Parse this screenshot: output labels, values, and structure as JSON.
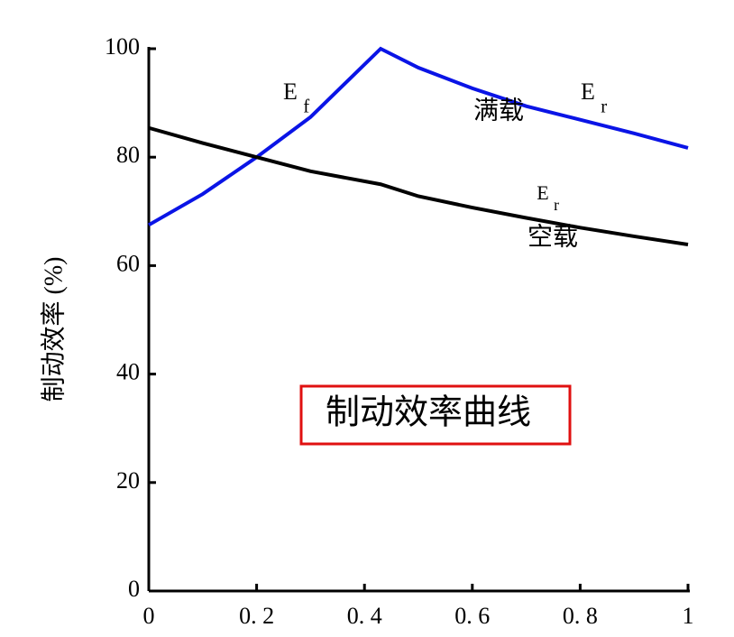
{
  "chart_data": {
    "type": "line",
    "ylabel": "制动效率 (%)",
    "box_text": "制动效率曲线",
    "x": [
      0,
      0.1,
      0.2,
      0.3,
      0.43,
      0.5,
      0.6,
      0.7,
      0.8,
      0.9,
      1
    ],
    "series": [
      {
        "name": "满载",
        "color": "#0a14e6",
        "values": [
          67.5,
          73.2,
          80,
          87.4,
          100,
          96.5,
          92.7,
          89.4,
          86.9,
          84.4,
          81.7
        ]
      },
      {
        "name": "空载",
        "color": "#000000",
        "values": [
          85.4,
          82.6,
          80,
          77.4,
          75,
          72.8,
          70.7,
          68.8,
          67,
          65.4,
          63.9
        ]
      }
    ],
    "annotations": [
      {
        "text": "E",
        "sub": "f"
      },
      {
        "text": "E",
        "sub": "r"
      },
      {
        "text": "E",
        "sub": "r"
      }
    ],
    "xlim": [
      0,
      1
    ],
    "ylim": [
      0,
      100
    ],
    "xticks": [
      0,
      {
        "value": 0.2,
        "label": "0. 2"
      },
      {
        "value": 0.4,
        "label": "0. 4"
      },
      {
        "value": 0.6,
        "label": "0. 6"
      },
      {
        "value": 0.8,
        "label": "0. 8"
      },
      1
    ],
    "yticks": [
      0,
      20,
      40,
      60,
      80,
      100
    ]
  }
}
